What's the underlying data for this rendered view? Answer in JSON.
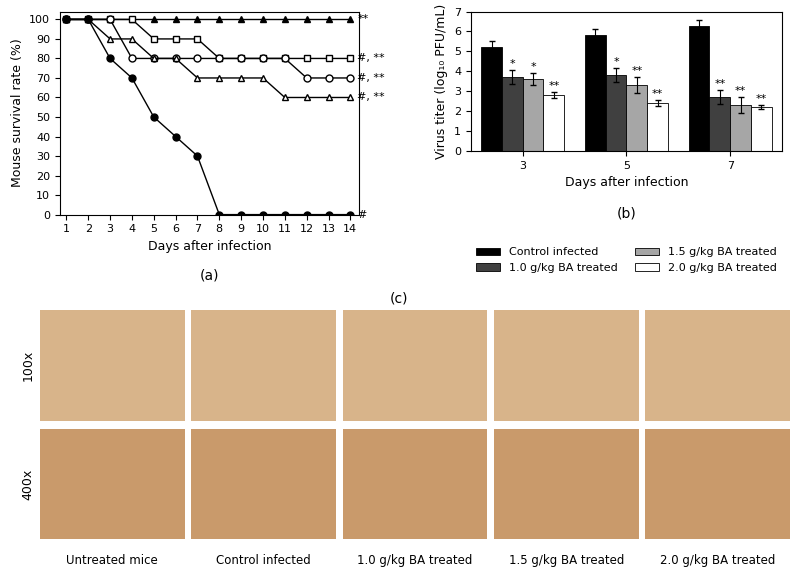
{
  "chart_data": [
    {
      "type": "line",
      "title": "(a)",
      "x_label": "Days after infection",
      "y_label": "Mouse survival rate (%)",
      "x": [
        1,
        2,
        3,
        4,
        5,
        6,
        7,
        8,
        9,
        10,
        11,
        12,
        13,
        14
      ],
      "xlim": [
        0.7,
        14.4
      ],
      "xticks": [
        1,
        2,
        3,
        4,
        5,
        6,
        7,
        8,
        9,
        10,
        11,
        12,
        13,
        14
      ],
      "ylim": [
        0,
        104
      ],
      "yticks": [
        0,
        10,
        20,
        30,
        40,
        50,
        60,
        70,
        80,
        90,
        100
      ],
      "series": [
        {
          "color": "#000000",
          "marker": "triangle",
          "annotation": "**",
          "values": [
            100,
            100,
            100,
            100,
            100,
            100,
            100,
            100,
            100,
            100,
            100,
            100,
            100,
            100
          ]
        },
        {
          "color": "#000000",
          "marker": "open_square",
          "annotation": "#, **",
          "values": [
            100,
            100,
            100,
            100,
            90,
            90,
            90,
            80,
            80,
            80,
            80,
            80,
            80,
            80
          ]
        },
        {
          "color": "#000000",
          "marker": "open_circle",
          "annotation": "#, **",
          "values": [
            100,
            100,
            100,
            80,
            80,
            80,
            80,
            80,
            80,
            80,
            80,
            70,
            70,
            70
          ]
        },
        {
          "color": "#000000",
          "marker": "open_triangle",
          "annotation": "#, **",
          "values": [
            100,
            100,
            90,
            90,
            80,
            80,
            70,
            70,
            70,
            70,
            60,
            60,
            60,
            60
          ]
        },
        {
          "color": "#000000",
          "marker": "circle",
          "annotation": "#",
          "values": [
            100,
            100,
            80,
            70,
            50,
            40,
            30,
            0,
            0,
            0,
            0,
            0,
            0,
            0
          ]
        }
      ]
    },
    {
      "type": "bar",
      "title": "(b)",
      "x_label": "Days after infection",
      "y_label": "Virus titer (log₁₀ PFU/mL)",
      "categories": [
        "3",
        "5",
        "7"
      ],
      "ylim": [
        0,
        7
      ],
      "yticks": [
        0,
        1,
        2,
        3,
        4,
        5,
        6,
        7
      ],
      "legend": "lower center",
      "series": [
        {
          "name": "Control infected",
          "color": "#000000",
          "values": [
            5.2,
            5.8,
            6.3
          ],
          "errors": [
            0.3,
            0.3,
            0.3
          ]
        },
        {
          "name": "1.0 g/kg BA treated",
          "color": "#404040",
          "values": [
            3.7,
            3.8,
            2.7
          ],
          "errors": [
            0.35,
            0.35,
            0.35
          ],
          "significance": [
            "*",
            "*",
            "**"
          ]
        },
        {
          "name": "1.5 g/kg BA treated",
          "color": "#a6a6a6",
          "values": [
            3.6,
            3.3,
            2.3
          ],
          "errors": [
            0.3,
            0.4,
            0.4
          ],
          "significance": [
            "*",
            "**",
            "**"
          ]
        },
        {
          "name": "2.0 g/kg BA treated",
          "color": "#ffffff",
          "values": [
            2.8,
            2.4,
            2.2
          ],
          "errors": [
            0.15,
            0.15,
            0.1
          ],
          "significance": [
            "**",
            "**",
            "**"
          ]
        }
      ]
    }
  ],
  "image_panel": {
    "title": "(c)",
    "rows": [
      "100x",
      "400x"
    ],
    "columns": [
      "Untreated mice",
      "Control infected",
      "1.0 g/kg BA treated",
      "1.5 g/kg BA treated",
      "2.0 g/kg BA treated"
    ]
  }
}
